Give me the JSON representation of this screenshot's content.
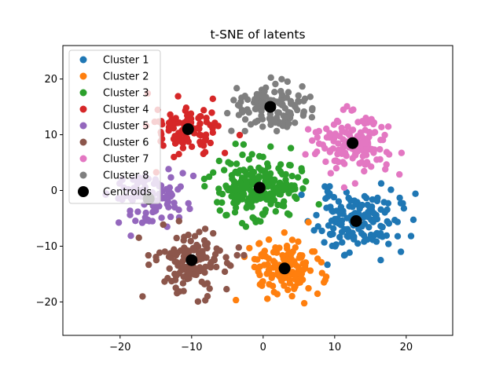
{
  "chart_data": {
    "type": "scatter",
    "title": "t-SNE of latents",
    "xlabel": "",
    "ylabel": "",
    "xlim": [
      -28,
      26.5
    ],
    "ylim": [
      -26,
      26
    ],
    "xticks": [
      -20,
      -10,
      0,
      10,
      20
    ],
    "yticks": [
      -20,
      -10,
      0,
      10,
      20
    ],
    "grid": false,
    "legend_position": "top-left",
    "series": [
      {
        "name": "Cluster 1",
        "color": "#1f77b4",
        "center": [
          13,
          -5.5
        ],
        "spread": [
          5.2,
          5.0
        ],
        "count": 150,
        "seed": 11
      },
      {
        "name": "Cluster 2",
        "color": "#ff7f0e",
        "center": [
          3,
          -14
        ],
        "spread": [
          4.8,
          4.6
        ],
        "count": 130,
        "seed": 23
      },
      {
        "name": "Cluster 3",
        "color": "#2ca02c",
        "center": [
          -0.5,
          0.5
        ],
        "spread": [
          5.2,
          4.6
        ],
        "count": 240,
        "seed": 37
      },
      {
        "name": "Cluster 4",
        "color": "#d62728",
        "center": [
          -10.5,
          11
        ],
        "spread": [
          4.0,
          4.2
        ],
        "count": 100,
        "seed": 41
      },
      {
        "name": "Cluster 5",
        "color": "#9467bd",
        "center": [
          -16,
          -1.5
        ],
        "spread": [
          5.0,
          4.2
        ],
        "count": 100,
        "seed": 53
      },
      {
        "name": "Cluster 6",
        "color": "#8c564b",
        "center": [
          -10,
          -12.5
        ],
        "spread": [
          5.0,
          5.0
        ],
        "count": 130,
        "seed": 67
      },
      {
        "name": "Cluster 7",
        "color": "#e377c2",
        "center": [
          12.5,
          8.5
        ],
        "spread": [
          5.4,
          4.8
        ],
        "count": 140,
        "seed": 71
      },
      {
        "name": "Cluster 8",
        "color": "#7f7f7f",
        "center": [
          1,
          15
        ],
        "spread": [
          5.2,
          4.2
        ],
        "count": 120,
        "seed": 83
      }
    ],
    "centroids": {
      "name": "Centroids",
      "color": "#000000",
      "points": [
        [
          13,
          -5.5
        ],
        [
          3,
          -14
        ],
        [
          -0.5,
          0.5
        ],
        [
          -10.5,
          11
        ],
        [
          -16,
          -1.5
        ],
        [
          -10,
          -12.5
        ],
        [
          12.5,
          8.5
        ],
        [
          1,
          15
        ]
      ]
    }
  }
}
